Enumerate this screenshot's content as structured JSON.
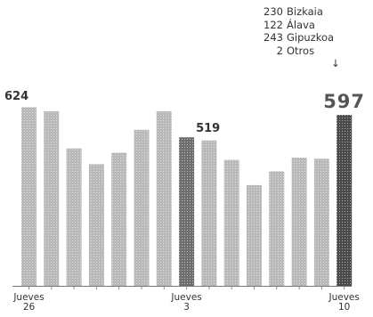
{
  "chart_data": {
    "type": "bar",
    "values": [
      624,
      610,
      480,
      425,
      465,
      545,
      610,
      519,
      508,
      440,
      352,
      400,
      448,
      444,
      597
    ],
    "highlighted": [
      7,
      14
    ],
    "ylim": [
      0,
      700
    ],
    "xlabels": [
      {
        "index": 0,
        "line1": "Jueves",
        "line2": "26"
      },
      {
        "index": 7,
        "line1": "Jueves",
        "line2": "3"
      },
      {
        "index": 14,
        "line1": "Jueves",
        "line2": "10"
      }
    ],
    "value_labels": [
      {
        "index": 0,
        "text": "624"
      },
      {
        "index": 7,
        "text": "519"
      },
      {
        "index": 14,
        "text": "597"
      }
    ],
    "annotation": {
      "rows": [
        {
          "value": "230",
          "label": "Bizkaia"
        },
        {
          "value": "122",
          "label": "Álava"
        },
        {
          "value": "243",
          "label": "Gipuzkoa"
        },
        {
          "value": "2",
          "label": "Otros"
        }
      ],
      "arrow": "↓"
    },
    "colors": {
      "bar": "#b9b9b9",
      "highlight": "#6e6e6e",
      "last": "#4a4a4a"
    }
  }
}
